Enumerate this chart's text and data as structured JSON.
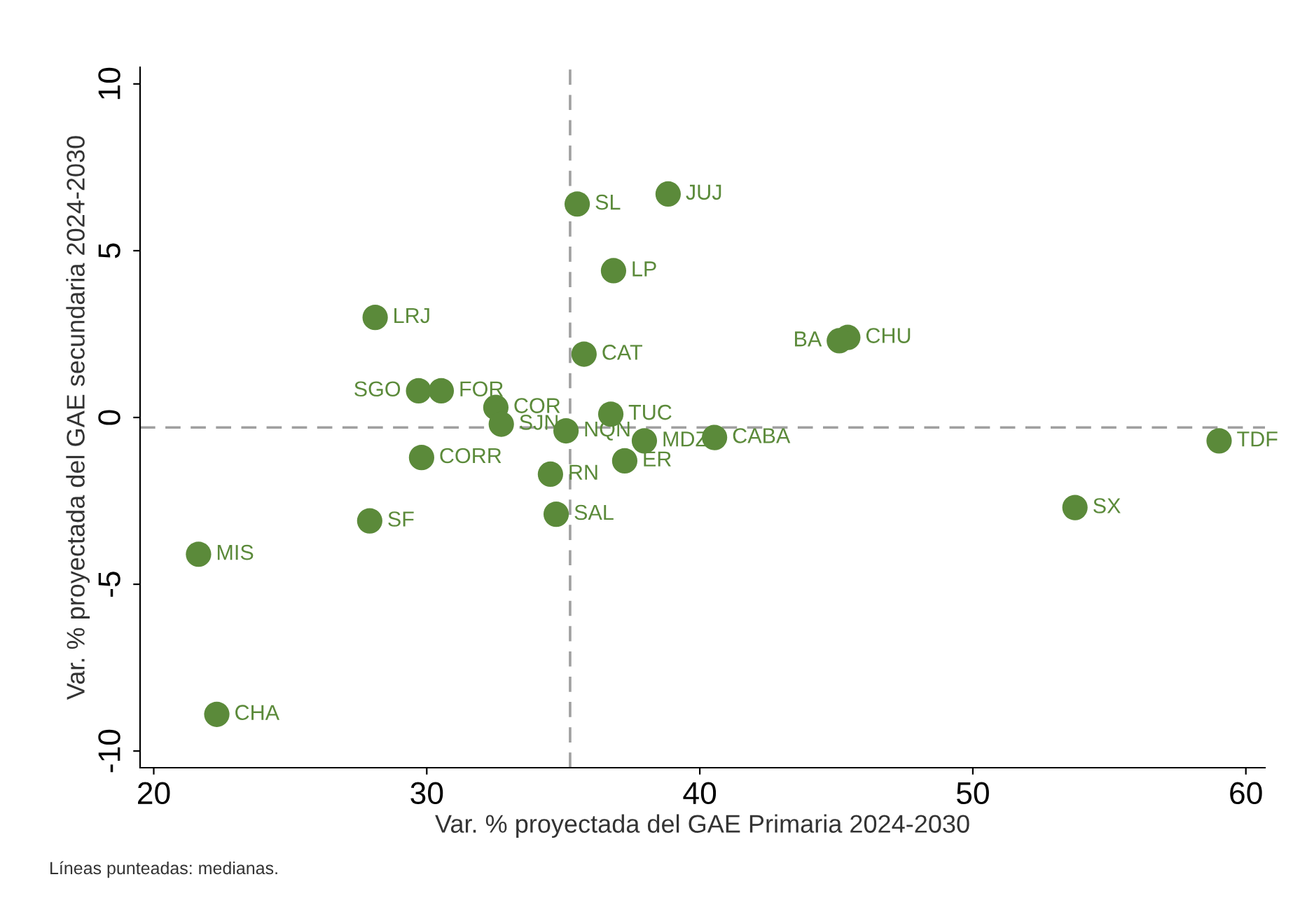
{
  "chart_data": {
    "type": "scatter",
    "xlabel": "Var. % proyectada del GAE Primaria 2024-2030",
    "ylabel": "Var. % proyectada del GAE secundaria 2024-2030",
    "series": [
      {
        "color": "#5b8a3a",
        "x": [
          38.84,
          35.51,
          36.84,
          28.11,
          35.76,
          45.42,
          45.11,
          29.7,
          30.53,
          32.53,
          32.73,
          35.1,
          36.74,
          37.97,
          40.54,
          37.25,
          34.53,
          29.81,
          34.74,
          27.91,
          21.64,
          22.31,
          53.74,
          59.02
        ],
        "values": [
          6.7,
          6.4,
          4.4,
          3.0,
          1.9,
          2.4,
          2.3,
          0.8,
          0.8,
          0.3,
          -0.2,
          -0.4,
          0.1,
          -0.7,
          -0.6,
          -1.3,
          -1.7,
          -1.2,
          -2.9,
          -3.1,
          -4.1,
          -8.9,
          -2.7,
          -0.7
        ]
      }
    ],
    "annotations": [
      {
        "text": "JUJ",
        "x": 38.84,
        "y": 6.7
      },
      {
        "text": "SL",
        "x": 35.51,
        "y": 6.4
      },
      {
        "text": "LP",
        "x": 36.84,
        "y": 4.4
      },
      {
        "text": "LRJ",
        "x": 28.11,
        "y": 3.0
      },
      {
        "text": "CAT",
        "x": 35.76,
        "y": 1.9
      },
      {
        "text": "CHU",
        "x": 45.42,
        "y": 2.4
      },
      {
        "text": "BA",
        "x": 45.11,
        "y": 2.3
      },
      {
        "text": "SGO",
        "x": 29.7,
        "y": 0.8
      },
      {
        "text": "FOR",
        "x": 30.53,
        "y": 0.8
      },
      {
        "text": "COR",
        "x": 32.53,
        "y": 0.3
      },
      {
        "text": "SJN",
        "x": 32.73,
        "y": -0.2
      },
      {
        "text": "NQN",
        "x": 35.1,
        "y": -0.4
      },
      {
        "text": "TUC",
        "x": 36.74,
        "y": 0.1
      },
      {
        "text": "MDZ",
        "x": 37.97,
        "y": -0.7
      },
      {
        "text": "CABA",
        "x": 40.54,
        "y": -0.6
      },
      {
        "text": "ER",
        "x": 37.25,
        "y": -1.3
      },
      {
        "text": "RN",
        "x": 34.53,
        "y": -1.7
      },
      {
        "text": "CORR",
        "x": 29.81,
        "y": -1.2
      },
      {
        "text": "SAL",
        "x": 34.74,
        "y": -2.9
      },
      {
        "text": "SF",
        "x": 27.91,
        "y": -3.1
      },
      {
        "text": "MIS",
        "x": 21.64,
        "y": -4.1
      },
      {
        "text": "CHA",
        "x": 22.31,
        "y": -8.9
      },
      {
        "text": "SX",
        "x": 53.74,
        "y": -2.7
      },
      {
        "text": "TDF",
        "x": 59.02,
        "y": -0.7
      },
      "Líneas punteadas: medianas."
    ],
    "ref_lines": [
      {
        "axis": "x",
        "value": 35.25,
        "color": "#a0a0a0",
        "line_style": "dashed"
      },
      {
        "axis": "y",
        "value": -0.3,
        "color": "#a0a0a0",
        "line_style": "dashed"
      }
    ],
    "xlim": [
      19.5,
      60.7
    ],
    "ylim": [
      -10.5,
      10.5
    ],
    "xticks": [
      20,
      30,
      40,
      50,
      60
    ],
    "yticks": [
      -10,
      -5,
      0,
      5,
      10
    ],
    "grid": false,
    "legend": false,
    "marker": "circle"
  }
}
